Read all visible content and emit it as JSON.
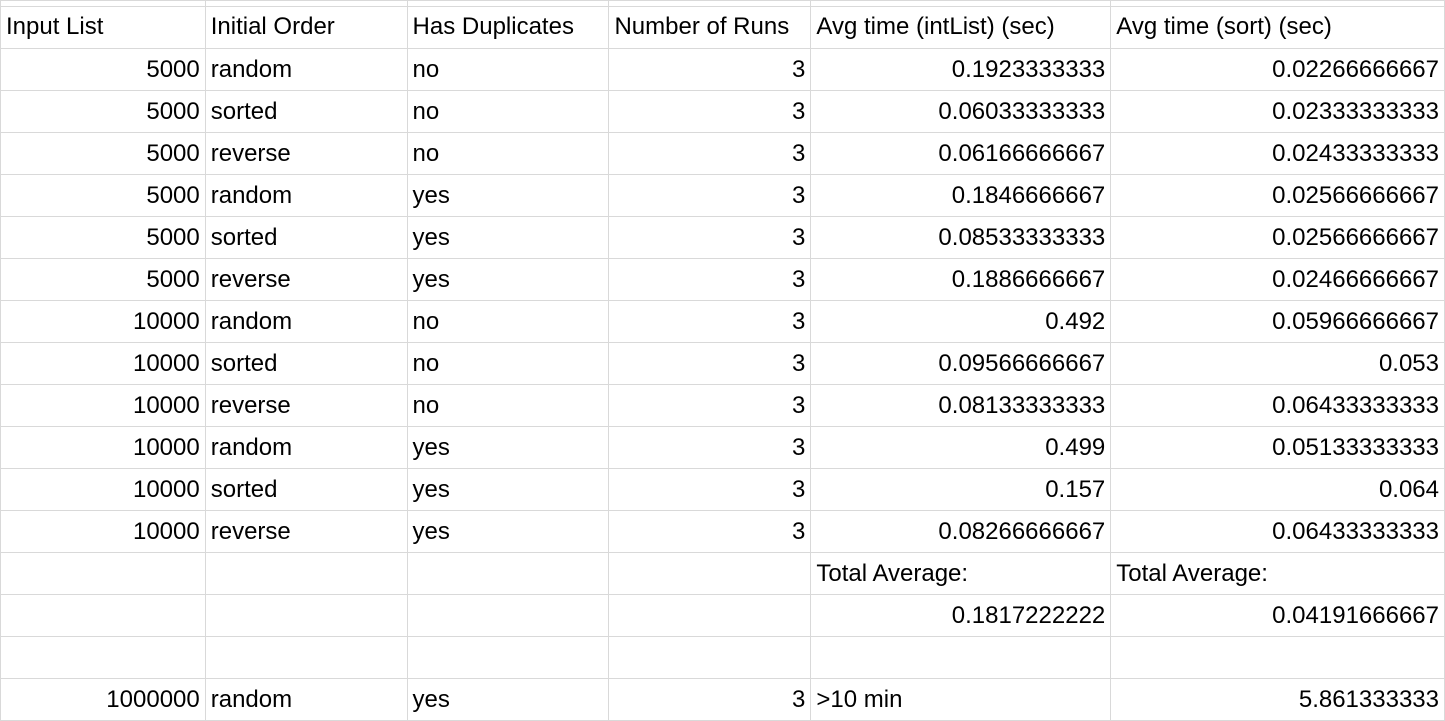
{
  "columns": [
    "Input List",
    "Initial Order",
    "Has Duplicates",
    "Number of Runs",
    "Avg time (intList) (sec)",
    "Avg time (sort) (sec)"
  ],
  "rows": [
    [
      "5000",
      "random",
      "no",
      "3",
      "0.1923333333",
      "0.02266666667"
    ],
    [
      "5000",
      "sorted",
      "no",
      "3",
      "0.06033333333",
      "0.02333333333"
    ],
    [
      "5000",
      "reverse",
      "no",
      "3",
      "0.06166666667",
      "0.02433333333"
    ],
    [
      "5000",
      "random",
      "yes",
      "3",
      "0.1846666667",
      "0.02566666667"
    ],
    [
      "5000",
      "sorted",
      "yes",
      "3",
      "0.08533333333",
      "0.02566666667"
    ],
    [
      "5000",
      "reverse",
      "yes",
      "3",
      "0.1886666667",
      "0.02466666667"
    ],
    [
      "10000",
      "random",
      "no",
      "3",
      "0.492",
      "0.05966666667"
    ],
    [
      "10000",
      "sorted",
      "no",
      "3",
      "0.09566666667",
      "0.053"
    ],
    [
      "10000",
      "reverse",
      "no",
      "3",
      "0.08133333333",
      "0.06433333333"
    ],
    [
      "10000",
      "random",
      "yes",
      "3",
      "0.499",
      "0.05133333333"
    ],
    [
      "10000",
      "sorted",
      "yes",
      "3",
      "0.157",
      "0.064"
    ],
    [
      "10000",
      "reverse",
      "yes",
      "3",
      "0.08266666667",
      "0.06433333333"
    ]
  ],
  "totals": {
    "label_intlist": "Total Average:",
    "label_sort": "Total Average:",
    "value_intlist": "0.1817222222",
    "value_sort": "0.04191666667"
  },
  "extra_row": [
    "1000000",
    "random",
    "yes",
    "3",
    ">10 min",
    "5.861333333"
  ]
}
